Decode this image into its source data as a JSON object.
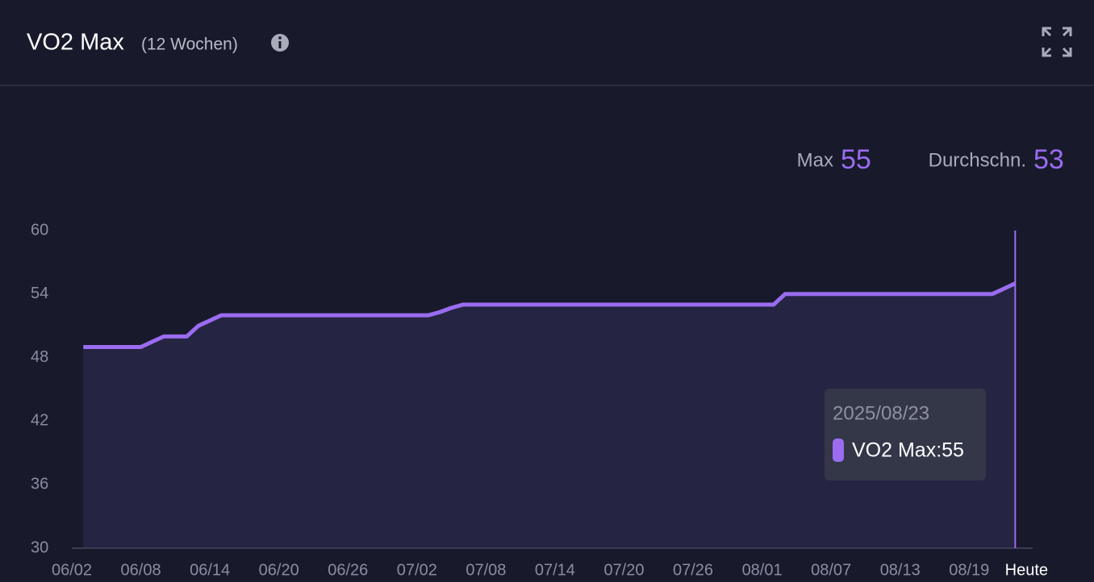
{
  "header": {
    "title": "VO2 Max",
    "subtitle": "(12 Wochen)"
  },
  "stats": [
    {
      "label": "Max",
      "value": 55
    },
    {
      "label": "Durchschn.",
      "value": 53
    }
  ],
  "tooltip": {
    "title": "2025/08/23",
    "text": "VO2 Max:55"
  },
  "chart_data": {
    "type": "area",
    "categories": [
      "06/02",
      null,
      null,
      null,
      null,
      null,
      "06/08",
      null,
      null,
      null,
      null,
      null,
      "06/14",
      null,
      null,
      null,
      null,
      null,
      "06/20",
      null,
      null,
      null,
      null,
      null,
      "06/26",
      null,
      null,
      null,
      null,
      null,
      "07/02",
      null,
      null,
      null,
      null,
      null,
      "07/08",
      null,
      null,
      null,
      null,
      null,
      "07/14",
      null,
      null,
      null,
      null,
      null,
      "07/20",
      null,
      null,
      null,
      null,
      null,
      "07/26",
      null,
      null,
      null,
      null,
      null,
      "08/01",
      null,
      null,
      null,
      null,
      null,
      "08/07",
      null,
      null,
      null,
      null,
      null,
      "08/13",
      null,
      null,
      null,
      null,
      null,
      "08/19",
      null,
      null,
      null,
      "Heute"
    ],
    "series": [
      {
        "name": "VO2 Max",
        "color": "#9a6cf0",
        "values": [
          null,
          49,
          49,
          49,
          49,
          49,
          49,
          49.5,
          50,
          50,
          50,
          51,
          51.5,
          52,
          52,
          52,
          52,
          52,
          52,
          52,
          52,
          52,
          52,
          52,
          52,
          52,
          52,
          52,
          52,
          52,
          52,
          52,
          52.3,
          52.7,
          53,
          53,
          53,
          53,
          53,
          53,
          53,
          53,
          53,
          53,
          53,
          53,
          53,
          53,
          53,
          53,
          53,
          53,
          53,
          53,
          53,
          53,
          53,
          53,
          53,
          53,
          53,
          53,
          54,
          54,
          54,
          54,
          54,
          54,
          54,
          54,
          54,
          54,
          54,
          54,
          54,
          54,
          54,
          54,
          54,
          54,
          54,
          54.5,
          55
        ]
      }
    ],
    "ylim": [
      30,
      60
    ],
    "yticks": [
      30,
      36,
      42,
      48,
      54,
      60
    ]
  }
}
